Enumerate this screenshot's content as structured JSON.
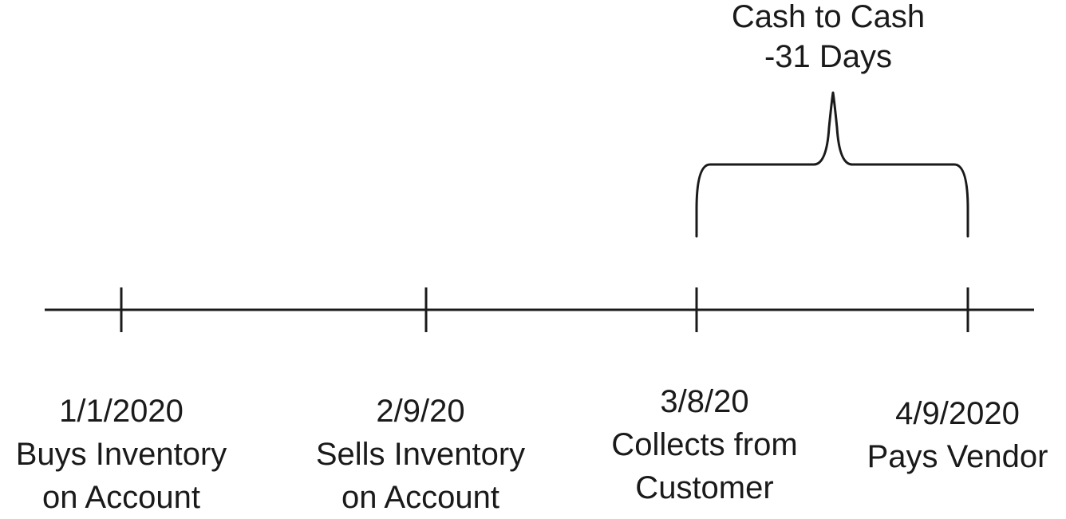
{
  "bracket": {
    "title_line1": "Cash to Cash",
    "title_line2": "-31 Days"
  },
  "events": [
    {
      "date": "1/1/2020",
      "line1": "Buys Inventory",
      "line2": "on Account"
    },
    {
      "date": "2/9/20",
      "line1": "Sells Inventory",
      "line2": "on Account"
    },
    {
      "date": "3/8/20",
      "line1": "Collects from",
      "line2": "Customer"
    },
    {
      "date": "4/9/2020",
      "line1": "Pays Vendor",
      "line2": ""
    }
  ],
  "colors": {
    "stroke": "#1a1a1a",
    "text": "#1a1a1a",
    "background": "#ffffff"
  }
}
